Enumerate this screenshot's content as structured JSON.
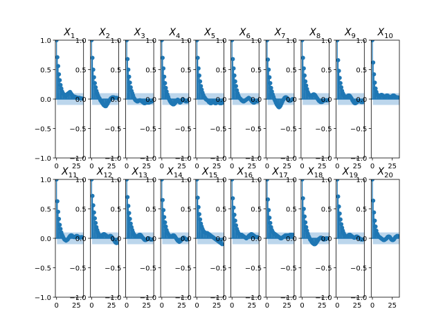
{
  "chart_data": {
    "type": "scatter",
    "style": "autocorrelation stem plot grid (2 rows x 10 columns) with shaded confidence band",
    "colors": {
      "marker": "#1f77b4",
      "band": "#a6c8e6",
      "axes": "#000000",
      "background": "#ffffff"
    },
    "y_ticks": [
      "1.0",
      "0.5",
      "0.0",
      "−0.5",
      "−1.0"
    ],
    "y_tick_values": [
      1.0,
      0.5,
      0.0,
      -0.5,
      -1.0
    ],
    "x_ticks": [
      "0",
      "25"
    ],
    "x_tick_values": [
      0,
      25
    ],
    "ylim": [
      -1.0,
      1.0
    ],
    "xlim": [
      -1.5,
      34
    ],
    "band_halfwidth": 0.1,
    "lags": [
      0,
      1,
      2,
      3,
      4,
      5,
      6,
      7,
      8,
      9,
      10,
      11,
      12,
      13,
      14,
      15,
      16,
      17,
      18,
      19,
      20,
      21,
      22,
      23,
      24,
      25,
      26,
      27,
      28,
      29,
      30,
      31,
      32
    ],
    "panels": [
      {
        "title_base": "X",
        "title_sub": "1",
        "values": [
          1.0,
          0.71,
          0.56,
          0.42,
          0.32,
          0.24,
          0.18,
          0.13,
          0.1,
          0.08,
          0.06,
          0.05,
          0.06,
          0.08,
          0.09,
          0.1,
          0.11,
          0.12,
          0.1,
          0.08,
          0.06,
          0.05,
          0.04,
          0.04,
          0.03,
          0.03,
          0.02,
          0.02,
          0.02,
          0.02,
          0.01,
          0.01,
          0.01
        ]
      },
      {
        "title_base": "X",
        "title_sub": "2",
        "values": [
          1.0,
          0.7,
          0.5,
          0.37,
          0.27,
          0.2,
          0.14,
          0.1,
          0.06,
          0.03,
          0.01,
          -0.02,
          -0.04,
          -0.06,
          -0.08,
          -0.1,
          -0.11,
          -0.12,
          -0.12,
          -0.1,
          -0.08,
          -0.05,
          -0.03,
          -0.01,
          0.01,
          0.02,
          0.03,
          0.03,
          0.03,
          0.02,
          0.02,
          0.02,
          0.02
        ]
      },
      {
        "title_base": "X",
        "title_sub": "3",
        "values": [
          1.0,
          0.68,
          0.5,
          0.38,
          0.28,
          0.2,
          0.14,
          0.1,
          0.06,
          0.02,
          0.0,
          -0.02,
          -0.03,
          -0.04,
          -0.04,
          -0.03,
          -0.02,
          -0.02,
          -0.03,
          -0.04,
          -0.05,
          -0.06,
          -0.07,
          -0.07,
          -0.06,
          -0.05,
          -0.06,
          -0.06,
          -0.06,
          -0.05,
          -0.05,
          -0.04,
          -0.04
        ]
      },
      {
        "title_base": "X",
        "title_sub": "4",
        "values": [
          1.0,
          0.7,
          0.52,
          0.38,
          0.27,
          0.19,
          0.13,
          0.08,
          0.04,
          0.0,
          -0.03,
          -0.05,
          -0.07,
          -0.08,
          -0.09,
          -0.09,
          -0.08,
          -0.06,
          -0.04,
          -0.02,
          -0.01,
          -0.03,
          -0.05,
          -0.06,
          -0.05,
          -0.03,
          -0.01,
          -0.01,
          -0.02,
          -0.03,
          -0.04,
          -0.04,
          -0.04
        ]
      },
      {
        "title_base": "X",
        "title_sub": "5",
        "values": [
          1.0,
          0.7,
          0.52,
          0.4,
          0.3,
          0.22,
          0.16,
          0.11,
          0.07,
          0.04,
          0.02,
          0.0,
          -0.01,
          -0.02,
          -0.03,
          -0.05,
          -0.06,
          -0.07,
          -0.07,
          -0.06,
          -0.05,
          -0.05,
          -0.06,
          -0.07,
          -0.07,
          -0.06,
          -0.05,
          -0.05,
          -0.06,
          -0.07,
          -0.07,
          -0.07,
          -0.06
        ]
      },
      {
        "title_base": "X",
        "title_sub": "6",
        "values": [
          1.0,
          0.68,
          0.52,
          0.4,
          0.3,
          0.22,
          0.15,
          0.1,
          0.06,
          0.03,
          0.01,
          0.0,
          -0.02,
          -0.03,
          -0.04,
          -0.04,
          -0.03,
          -0.02,
          -0.01,
          0.0,
          0.01,
          0.02,
          0.01,
          0.0,
          -0.02,
          -0.04,
          -0.05,
          -0.06,
          -0.06,
          -0.05,
          -0.04,
          -0.04,
          -0.04
        ]
      },
      {
        "title_base": "X",
        "title_sub": "7",
        "values": [
          1.0,
          0.67,
          0.5,
          0.37,
          0.27,
          0.19,
          0.13,
          0.08,
          0.04,
          0.0,
          -0.03,
          -0.06,
          -0.09,
          -0.11,
          -0.13,
          -0.14,
          -0.13,
          -0.11,
          -0.08,
          -0.05,
          -0.02,
          0.0,
          0.02,
          0.03,
          0.03,
          0.02,
          0.0,
          -0.02,
          -0.03,
          -0.03,
          -0.02,
          -0.01,
          0.0
        ]
      },
      {
        "title_base": "X",
        "title_sub": "8",
        "values": [
          1.0,
          0.7,
          0.52,
          0.4,
          0.3,
          0.23,
          0.17,
          0.12,
          0.09,
          0.07,
          0.06,
          0.06,
          0.06,
          0.07,
          0.08,
          0.08,
          0.07,
          0.05,
          0.03,
          0.01,
          -0.01,
          -0.03,
          -0.04,
          -0.05,
          -0.05,
          -0.05,
          -0.04,
          -0.03,
          -0.02,
          -0.02,
          -0.02,
          -0.02,
          -0.02
        ]
      },
      {
        "title_base": "X",
        "title_sub": "9",
        "values": [
          1.0,
          0.66,
          0.48,
          0.36,
          0.27,
          0.2,
          0.14,
          0.1,
          0.07,
          0.05,
          0.04,
          0.04,
          0.04,
          0.05,
          0.06,
          0.06,
          0.05,
          0.03,
          0.01,
          -0.02,
          -0.04,
          -0.06,
          -0.07,
          -0.07,
          -0.06,
          -0.05,
          -0.04,
          -0.03,
          -0.03,
          -0.04,
          -0.05,
          -0.05,
          -0.05
        ]
      },
      {
        "title_base": "X",
        "title_sub": "10",
        "values": [
          1.0,
          0.62,
          0.42,
          0.28,
          0.18,
          0.12,
          0.08,
          0.06,
          0.05,
          0.05,
          0.06,
          0.07,
          0.07,
          0.06,
          0.05,
          0.04,
          0.04,
          0.05,
          0.06,
          0.06,
          0.05,
          0.04,
          0.03,
          0.03,
          0.04,
          0.05,
          0.06,
          0.06,
          0.05,
          0.04,
          0.03,
          0.03,
          0.03
        ]
      },
      {
        "title_base": "X",
        "title_sub": "11",
        "values": [
          1.0,
          0.63,
          0.45,
          0.33,
          0.23,
          0.16,
          0.1,
          0.06,
          0.03,
          0.0,
          -0.02,
          -0.03,
          -0.04,
          -0.03,
          -0.02,
          0.0,
          0.02,
          0.04,
          0.05,
          0.05,
          0.04,
          0.03,
          0.02,
          0.02,
          0.03,
          0.04,
          0.04,
          0.03,
          0.02,
          0.01,
          0.01,
          0.02,
          0.02
        ]
      },
      {
        "title_base": "X",
        "title_sub": "12",
        "values": [
          1.0,
          0.72,
          0.56,
          0.44,
          0.34,
          0.26,
          0.19,
          0.14,
          0.1,
          0.07,
          0.05,
          0.04,
          0.04,
          0.05,
          0.06,
          0.07,
          0.07,
          0.06,
          0.05,
          0.04,
          0.03,
          0.03,
          0.03,
          0.04,
          0.04,
          0.03,
          0.01,
          -0.01,
          -0.03,
          -0.05,
          -0.07,
          -0.08,
          -0.08
        ]
      },
      {
        "title_base": "X",
        "title_sub": "13",
        "values": [
          1.0,
          0.7,
          0.55,
          0.43,
          0.33,
          0.25,
          0.19,
          0.14,
          0.1,
          0.07,
          0.05,
          0.04,
          0.03,
          0.03,
          0.04,
          0.05,
          0.06,
          0.06,
          0.05,
          0.03,
          0.01,
          0.0,
          -0.02,
          -0.03,
          -0.03,
          -0.02,
          -0.01,
          0.0,
          0.0,
          -0.01,
          -0.02,
          -0.02,
          -0.02
        ]
      },
      {
        "title_base": "X",
        "title_sub": "14",
        "values": [
          1.0,
          0.65,
          0.48,
          0.36,
          0.27,
          0.2,
          0.14,
          0.1,
          0.07,
          0.05,
          0.04,
          0.03,
          0.03,
          0.04,
          0.05,
          0.05,
          0.04,
          0.02,
          0.0,
          -0.02,
          -0.04,
          -0.05,
          -0.06,
          -0.05,
          -0.04,
          -0.02,
          0.0,
          0.01,
          0.01,
          0.0,
          -0.01,
          -0.02,
          -0.02
        ]
      },
      {
        "title_base": "X",
        "title_sub": "15",
        "values": [
          1.0,
          0.69,
          0.53,
          0.41,
          0.32,
          0.25,
          0.2,
          0.16,
          0.13,
          0.11,
          0.1,
          0.09,
          0.09,
          0.09,
          0.08,
          0.07,
          0.06,
          0.05,
          0.04,
          0.03,
          0.02,
          0.01,
          0.0,
          -0.01,
          -0.02,
          -0.03,
          -0.04,
          -0.05,
          -0.06,
          -0.07,
          -0.08,
          -0.09,
          -0.1
        ]
      },
      {
        "title_base": "X",
        "title_sub": "16",
        "values": [
          1.0,
          0.68,
          0.52,
          0.4,
          0.3,
          0.22,
          0.16,
          0.12,
          0.09,
          0.07,
          0.06,
          0.06,
          0.06,
          0.05,
          0.04,
          0.03,
          0.02,
          0.01,
          0.0,
          0.01,
          0.02,
          0.04,
          0.05,
          0.06,
          0.07,
          0.07,
          0.06,
          0.05,
          0.04,
          0.03,
          0.02,
          0.02,
          0.02
        ]
      },
      {
        "title_base": "X",
        "title_sub": "17",
        "values": [
          1.0,
          0.66,
          0.48,
          0.35,
          0.26,
          0.19,
          0.14,
          0.11,
          0.09,
          0.08,
          0.07,
          0.06,
          0.05,
          0.04,
          0.03,
          0.02,
          0.01,
          0.0,
          0.0,
          0.01,
          0.02,
          0.03,
          0.04,
          0.05,
          0.05,
          0.05,
          0.05,
          0.05,
          0.05,
          0.06,
          0.06,
          0.06,
          0.06
        ]
      },
      {
        "title_base": "X",
        "title_sub": "18",
        "values": [
          1.0,
          0.68,
          0.5,
          0.37,
          0.27,
          0.19,
          0.13,
          0.08,
          0.04,
          0.01,
          -0.02,
          -0.04,
          -0.06,
          -0.08,
          -0.09,
          -0.1,
          -0.1,
          -0.09,
          -0.07,
          -0.05,
          -0.03,
          -0.01,
          0.0,
          0.01,
          0.01,
          0.0,
          -0.01,
          -0.02,
          -0.02,
          -0.01,
          0.0,
          0.0,
          0.0
        ]
      },
      {
        "title_base": "X",
        "title_sub": "19",
        "values": [
          1.0,
          0.71,
          0.54,
          0.42,
          0.32,
          0.24,
          0.18,
          0.13,
          0.09,
          0.06,
          0.04,
          0.03,
          0.03,
          0.04,
          0.05,
          0.06,
          0.06,
          0.05,
          0.04,
          0.03,
          0.02,
          0.01,
          0.01,
          0.02,
          0.03,
          0.03,
          0.02,
          0.01,
          0.0,
          -0.01,
          -0.02,
          -0.02,
          -0.02
        ]
      },
      {
        "title_base": "X",
        "title_sub": "20",
        "values": [
          1.0,
          0.64,
          0.44,
          0.3,
          0.2,
          0.13,
          0.08,
          0.05,
          0.03,
          0.02,
          0.01,
          0.0,
          -0.01,
          -0.02,
          -0.03,
          -0.03,
          -0.02,
          -0.01,
          0.0,
          0.02,
          0.03,
          0.03,
          0.02,
          0.0,
          -0.02,
          -0.03,
          -0.03,
          -0.02,
          0.0,
          0.02,
          0.03,
          0.04,
          0.04
        ]
      }
    ]
  }
}
